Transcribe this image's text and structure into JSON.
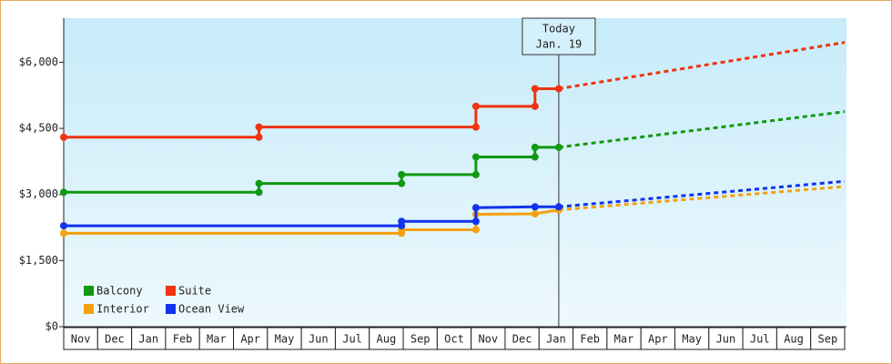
{
  "chart_data": {
    "type": "step-line",
    "categories": [
      "Nov",
      "Dec",
      "Jan",
      "Feb",
      "Mar",
      "Apr",
      "May",
      "Jun",
      "Jul",
      "Aug",
      "Sep",
      "Oct",
      "Nov",
      "Dec",
      "Jan",
      "Feb",
      "Mar",
      "Apr",
      "May",
      "Jun",
      "Jul",
      "Aug",
      "Sep"
    ],
    "xlim": [
      0,
      23
    ],
    "ylim": [
      0,
      7000
    ],
    "yticks": [
      {
        "value": 0,
        "label": "$0"
      },
      {
        "value": 1500,
        "label": "$1,500"
      },
      {
        "value": 3000,
        "label": "$3,000"
      },
      {
        "value": 4500,
        "label": "$4,500"
      },
      {
        "value": 6000,
        "label": "$6,000"
      }
    ],
    "annotation": {
      "lines": [
        "Today",
        "Jan. 19"
      ],
      "x": 14.58
    },
    "projection_x": 23,
    "legend": "bottom-left",
    "series": [
      {
        "name": "Balcony",
        "color": "#119911",
        "x": [
          0,
          5.75,
          5.75,
          9.95,
          9.95,
          12.14,
          12.14,
          13.88,
          13.88,
          14.58
        ],
        "values": [
          3050,
          3050,
          3250,
          3250,
          3450,
          3450,
          3850,
          3850,
          4070,
          4070
        ],
        "projection": 4880
      },
      {
        "name": "Suite",
        "color": "#ee3311",
        "x": [
          0,
          5.75,
          5.75,
          12.14,
          12.14,
          13.88,
          13.88,
          14.58
        ],
        "values": [
          4300,
          4300,
          4530,
          4530,
          5000,
          5000,
          5400,
          5400
        ],
        "projection": 6450
      },
      {
        "name": "Interior",
        "color": "#f5a010",
        "x": [
          0,
          9.95,
          9.95,
          12.14,
          12.14,
          13.88,
          14.58
        ],
        "values": [
          2120,
          2120,
          2200,
          2200,
          2550,
          2560,
          2650
        ],
        "projection": 3180
      },
      {
        "name": "Ocean View",
        "color": "#1133ee",
        "x": [
          0,
          9.95,
          9.95,
          12.14,
          12.14,
          13.88,
          14.58
        ],
        "values": [
          2290,
          2290,
          2390,
          2390,
          2700,
          2720,
          2720
        ],
        "projection": 3300
      }
    ]
  }
}
